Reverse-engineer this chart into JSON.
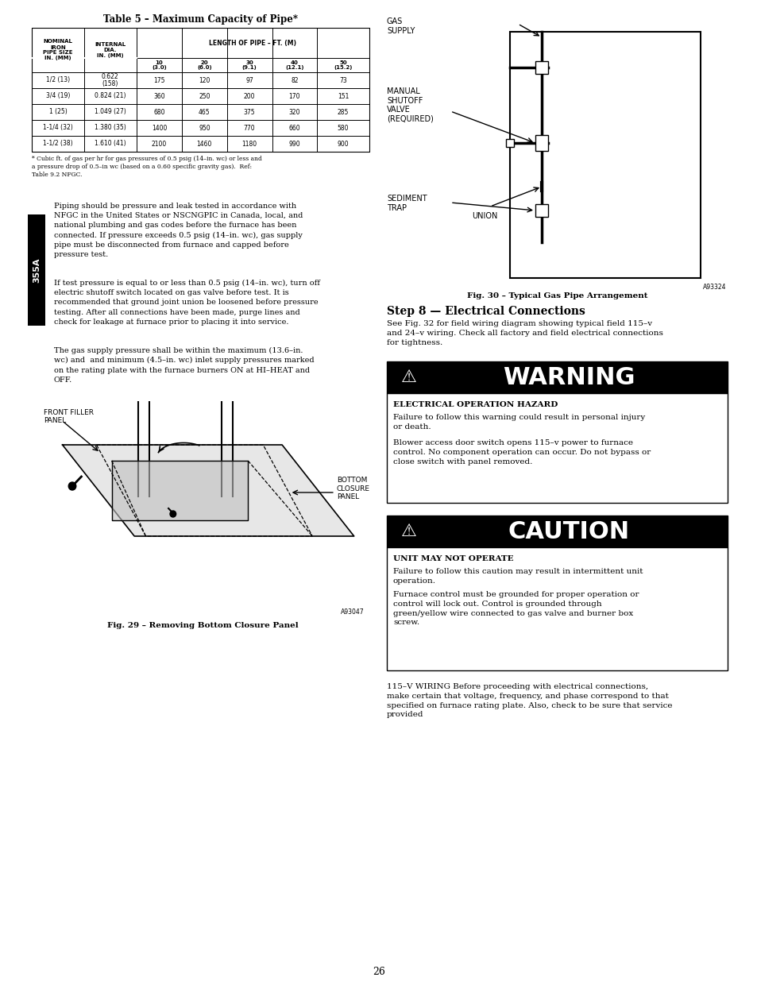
{
  "page_bg": "#ffffff",
  "page_width": 9.54,
  "page_height": 12.35,
  "table_title": "Table 5 – Maximum Capacity of Pipe*",
  "table_data": [
    [
      "1/2 (13)",
      "0.622\n(158)",
      "175",
      "120",
      "97",
      "82",
      "73"
    ],
    [
      "3/4 (19)",
      "0.824 (21)",
      "360",
      "250",
      "200",
      "170",
      "151"
    ],
    [
      "1 (25)",
      "1.049 (27)",
      "680",
      "465",
      "375",
      "320",
      "285"
    ],
    [
      "1-1/4 (32)",
      "1.380 (35)",
      "1400",
      "950",
      "770",
      "660",
      "580"
    ],
    [
      "1-1/2 (38)",
      "1.610 (41)",
      "2100",
      "1460",
      "1180",
      "990",
      "900"
    ]
  ],
  "table_footnote": "* Cubic ft. of gas per hr for gas pressures of 0.5 psig (14–in. wc) or less and\na pressure drop of 0.5–in wc (based on a 0.60 specific gravity gas).  Ref:\nTable 9.2 NFGC.",
  "left_para1": "Piping should be pressure and leak tested in accordance with\nNFGC in the United States or NSCNGPIC in Canada, local, and\nnational plumbing and gas codes before the furnace has been\nconnected. If pressure exceeds 0.5 psig (14–in. wc), gas supply\npipe must be disconnected from furnace and capped before\npressure test.",
  "left_para2": "If test pressure is equal to or less than 0.5 psig (14–in. wc), turn off\nelectric shutoff switch located on gas valve before test. It is\nrecommended that ground joint union be loosened before pressure\ntesting. After all connections have been made, purge lines and\ncheck for leakage at furnace prior to placing it into service.",
  "left_para3": "The gas supply pressure shall be within the maximum (13.6–in.\nwc) and  and minimum (4.5–in. wc) inlet supply pressures marked\non the rating plate with the furnace burners ON at HI–HEAT and\nOFF.",
  "fig29_caption": "Fig. 29 – Removing Bottom Closure Panel",
  "fig29_code": "A93047",
  "fig30_caption": "Fig. 30 – Typical Gas Pipe Arrangement",
  "fig30_code": "A93324",
  "step8_title": "Step 8 — Electrical Connections",
  "step8_para": "See Fig. 32 for field wiring diagram showing typical field 115–v\nand 24–v wiring. Check all factory and field electrical connections\nfor tightness.",
  "warning_title": "WARNING",
  "warning_subtitle": "ELECTRICAL OPERATION HAZARD",
  "warning_body1": "Failure to follow this warning could result in personal injury\nor death.",
  "warning_body2": "Blower access door switch opens 115–v power to furnace\ncontrol. No component operation can occur. Do not bypass or\nclose switch with panel removed.",
  "caution_title": "CAUTION",
  "caution_subtitle": "UNIT MAY NOT OPERATE",
  "caution_body1": "Failure to follow this caution may result in intermittent unit\noperation.",
  "caution_body2": "Furnace control must be grounded for proper operation or\ncontrol will lock out. Control is grounded through\ngreen/yellow wire connected to gas valve and burner box\nscrew.",
  "bottom_para": "115–V WIRING Before proceeding with electrical connections,\nmake certain that voltage, frequency, and phase correspond to that\nspecified on furnace rating plate. Also, check to be sure that service\nprovided",
  "sidebar_text": "355A",
  "page_number": "26"
}
